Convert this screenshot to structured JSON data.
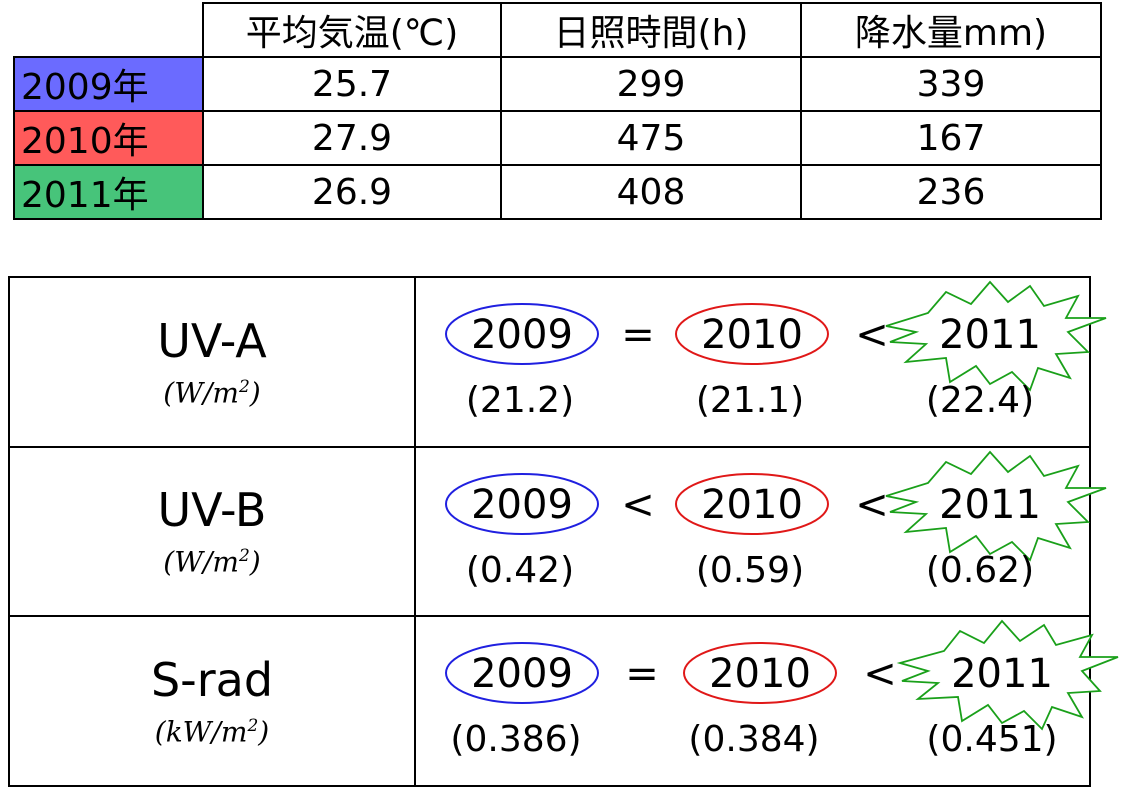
{
  "top_table": {
    "headers": [
      "平均気温(℃)",
      "日照時間(h)",
      "降水量mm)"
    ],
    "rows": [
      {
        "year": "2009年",
        "color": "#6b6bff",
        "temp": "25.7",
        "sun": "299",
        "rain": "339"
      },
      {
        "year": "2010年",
        "color": "#ff5a5a",
        "temp": "27.9",
        "sun": "475",
        "rain": "167"
      },
      {
        "year": "2011年",
        "color": "#47c47a",
        "temp": "26.9",
        "sun": "408",
        "rain": "236"
      }
    ]
  },
  "colors": {
    "ellipse_2009": "#2020e0",
    "ellipse_2010": "#e01818",
    "burst_2011": "#1aa01a"
  },
  "comparisons": [
    {
      "metric": "UV-A",
      "unit_base": "(W/m",
      "unit_exp": "2",
      "unit_close": ")",
      "y2009": "2009",
      "op1": "=",
      "y2010": "2010",
      "op2": "<",
      "y2011": "2011",
      "v2009": "(21.2)",
      "v2010": "(21.1)",
      "v2011": "(22.4)"
    },
    {
      "metric": "UV-B",
      "unit_base": "(W/m",
      "unit_exp": "2",
      "unit_close": ")",
      "y2009": "2009",
      "op1": "<",
      "y2010": "2010",
      "op2": "<",
      "y2011": "2011",
      "v2009": "(0.42)",
      "v2010": "(0.59)",
      "v2011": "(0.62)"
    },
    {
      "metric": "S-rad",
      "unit_base": "(kW/m",
      "unit_exp": "2",
      "unit_close": ")",
      "y2009": "2009",
      "op1": "=",
      "y2010": "2010",
      "op2": "<",
      "y2011": "2011",
      "v2009": "(0.386)",
      "v2010": "(0.384)",
      "v2011": "(0.451)"
    }
  ]
}
